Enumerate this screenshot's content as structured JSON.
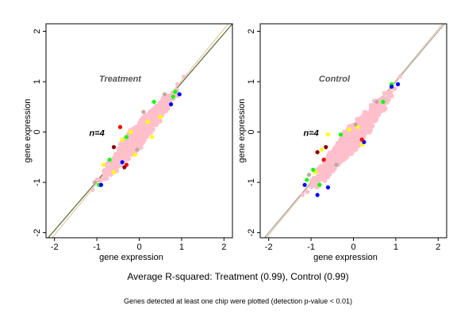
{
  "summary": "Average R-squared: Treatment (0.99), Control (0.99)",
  "footnote": "Genes detected at least one chip were plotted (detection p-value < 0.01)",
  "chart_data": [
    {
      "type": "scatter",
      "title": "Treatment",
      "annotation": "n=4",
      "xlabel": "gene expression",
      "ylabel": "gene expression",
      "xlim": [
        -2.2,
        2.2
      ],
      "ylim": [
        -2.1,
        2.15
      ],
      "xticks": [
        -2,
        -1,
        0,
        1,
        2
      ],
      "yticks": [
        -2,
        -1,
        0,
        1,
        2
      ],
      "xticklabels": [
        "-2",
        "-1",
        "0",
        "1",
        "2"
      ],
      "yticklabels": [
        "-2",
        "-1",
        "0",
        "1",
        "2"
      ],
      "grid": false,
      "reference_lines": [
        {
          "name": "",
          "color": "#556b2f",
          "points": [
            [
              -2.2,
              -2.15
            ],
            [
              2.2,
              2.15
            ]
          ]
        },
        {
          "name": "",
          "color": "#e6c7a6",
          "points": [
            [
              -2.2,
              -2.25
            ],
            [
              2.2,
              2.25
            ]
          ]
        }
      ],
      "cloud": {
        "color": "#ffc0cb",
        "center": [
          -0.05,
          -0.1
        ],
        "half_length": 1.5,
        "half_width": 0.22
      },
      "series": [
        {
          "name": "",
          "color": "#ffc0cb",
          "points": [
            [
              -1.1,
              -1.15
            ],
            [
              -0.9,
              -0.95
            ],
            [
              -0.5,
              -0.55
            ],
            [
              0.0,
              0.0
            ],
            [
              0.5,
              0.55
            ],
            [
              0.9,
              0.95
            ],
            [
              1.05,
              1.1
            ]
          ]
        },
        {
          "name": "",
          "color": "#ffff00",
          "points": [
            [
              -0.85,
              -0.65
            ],
            [
              -0.6,
              -0.8
            ],
            [
              -0.2,
              0.0
            ],
            [
              0.2,
              0.2
            ],
            [
              0.5,
              0.3
            ],
            [
              -0.1,
              -0.45
            ],
            [
              0.3,
              -0.1
            ],
            [
              -0.4,
              -0.15
            ]
          ]
        },
        {
          "name": "",
          "color": "#00ff00",
          "points": [
            [
              -0.95,
              -1.05
            ],
            [
              -0.7,
              -0.55
            ],
            [
              -0.3,
              -0.1
            ],
            [
              0.35,
              0.6
            ],
            [
              0.8,
              0.7
            ],
            [
              0.85,
              0.8
            ]
          ]
        },
        {
          "name": "",
          "color": "#0000ff",
          "points": [
            [
              -0.9,
              -1.05
            ],
            [
              0.95,
              0.75
            ],
            [
              0.75,
              0.55
            ],
            [
              -0.4,
              -0.6
            ]
          ]
        },
        {
          "name": "",
          "color": "#ff0000",
          "points": [
            [
              -0.3,
              -0.65
            ],
            [
              -0.45,
              0.1
            ]
          ]
        },
        {
          "name": "",
          "color": "#8b0000",
          "points": [
            [
              -0.6,
              -0.3
            ],
            [
              -0.35,
              -0.7
            ]
          ]
        },
        {
          "name": "",
          "color": "#c0a8a0",
          "points": [
            [
              -1.05,
              -1.0
            ],
            [
              0.1,
              0.4
            ],
            [
              0.6,
              0.75
            ],
            [
              -0.05,
              -0.35
            ]
          ]
        }
      ]
    },
    {
      "type": "scatter",
      "title": "Control",
      "annotation": "n=4",
      "xlabel": "gene expression",
      "ylabel": "gene expression",
      "xlim": [
        -2.2,
        2.2
      ],
      "ylim": [
        -2.1,
        2.15
      ],
      "xticks": [
        -2,
        -1,
        0,
        1,
        2
      ],
      "yticks": [
        -2,
        -1,
        0,
        1,
        2
      ],
      "xticklabels": [
        "-2",
        "-1",
        "0",
        "1",
        "2"
      ],
      "yticklabels": [
        "-2",
        "-1",
        "0",
        "1",
        "2"
      ],
      "grid": false,
      "reference_lines": [
        {
          "name": "",
          "color": "#a0a0a0",
          "points": [
            [
              -2.2,
              -2.2
            ],
            [
              2.2,
              2.2
            ]
          ]
        },
        {
          "name": "",
          "color": "#e6c7a6",
          "points": [
            [
              -2.2,
              -2.25
            ],
            [
              2.2,
              2.25
            ]
          ]
        }
      ],
      "cloud": {
        "color": "#ffc0cb",
        "center": [
          -0.05,
          -0.15
        ],
        "half_length": 1.6,
        "half_width": 0.24
      },
      "series": [
        {
          "name": "",
          "color": "#ffc0cb",
          "points": [
            [
              -1.2,
              -1.25
            ],
            [
              -0.9,
              -0.95
            ],
            [
              -0.5,
              -0.55
            ],
            [
              0.0,
              0.0
            ],
            [
              0.5,
              0.55
            ],
            [
              0.9,
              0.95
            ],
            [
              1.1,
              1.1
            ]
          ]
        },
        {
          "name": "",
          "color": "#ffff00",
          "points": [
            [
              -0.75,
              -0.35
            ],
            [
              -0.6,
              -0.05
            ],
            [
              -0.1,
              0.05
            ],
            [
              0.1,
              0.1
            ],
            [
              -0.9,
              -0.8
            ],
            [
              0.2,
              -0.25
            ]
          ]
        },
        {
          "name": "",
          "color": "#00ff00",
          "points": [
            [
              -1.1,
              -0.95
            ],
            [
              -0.95,
              -0.75
            ],
            [
              -0.3,
              -0.05
            ],
            [
              0.7,
              0.6
            ],
            [
              -0.8,
              -1.05
            ],
            [
              0.9,
              0.95
            ]
          ]
        },
        {
          "name": "",
          "color": "#0000ff",
          "points": [
            [
              -1.15,
              -1.05
            ],
            [
              -0.85,
              -1.25
            ],
            [
              -0.6,
              -1.1
            ],
            [
              0.25,
              -0.2
            ],
            [
              0.9,
              0.9
            ],
            [
              1.05,
              0.95
            ]
          ]
        },
        {
          "name": "",
          "color": "#ff0000",
          "points": [
            [
              0.2,
              -0.15
            ],
            [
              -0.7,
              -0.55
            ]
          ]
        },
        {
          "name": "",
          "color": "#8b0000",
          "points": [
            [
              -0.85,
              -0.4
            ],
            [
              -0.65,
              -0.3
            ]
          ]
        },
        {
          "name": "",
          "color": "#c0a8a0",
          "points": [
            [
              -1.05,
              -0.85
            ],
            [
              0.05,
              0.15
            ],
            [
              0.55,
              0.6
            ],
            [
              -0.4,
              -0.65
            ]
          ]
        }
      ]
    }
  ]
}
